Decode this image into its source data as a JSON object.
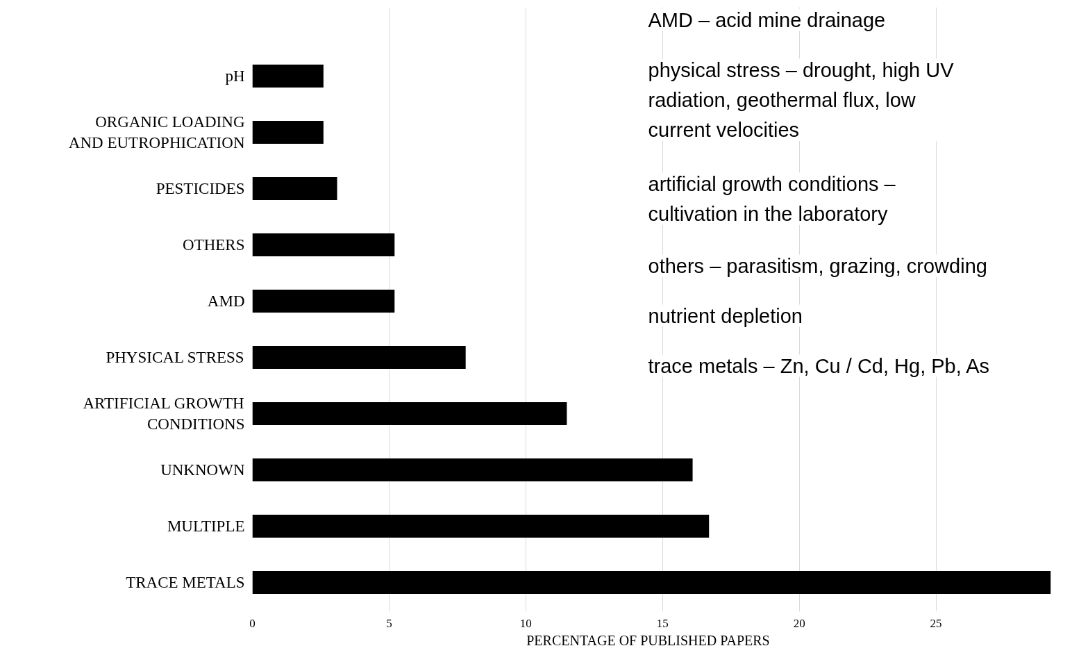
{
  "chart_data": {
    "type": "bar",
    "orientation": "horizontal",
    "xlabel": "PERCENTAGE  OF PUBLISHED  PAPERS",
    "categories": [
      "pH",
      "ORGANIC LOADING AND EUTROPHICATION",
      "PESTICIDES",
      "OTHERS",
      "AMD",
      "PHYSICAL STRESS",
      "ARTIFICIAL GROWTH CONDITIONS",
      "UNKNOWN",
      "MULTIPLE",
      "TRACE METALS"
    ],
    "values": [
      2.6,
      2.6,
      3.1,
      5.2,
      5.2,
      7.8,
      11.5,
      16.1,
      16.7,
      29.2
    ],
    "color": "#000000",
    "xlim": [
      0,
      29.2
    ],
    "xticks": [
      0,
      5,
      10,
      15,
      20,
      25
    ],
    "grid": "x",
    "annotations": [
      "AMD – acid mine drainage",
      "physical stress – drought, high UV radiation, geothermal flux, low current velocities",
      "artificial growth conditions – cultivation in the laboratory",
      "others – parasitism, grazing, crowding",
      "nutrient depletion",
      "trace metals – Zn, Cu / Cd, Hg, Pb, As"
    ]
  }
}
